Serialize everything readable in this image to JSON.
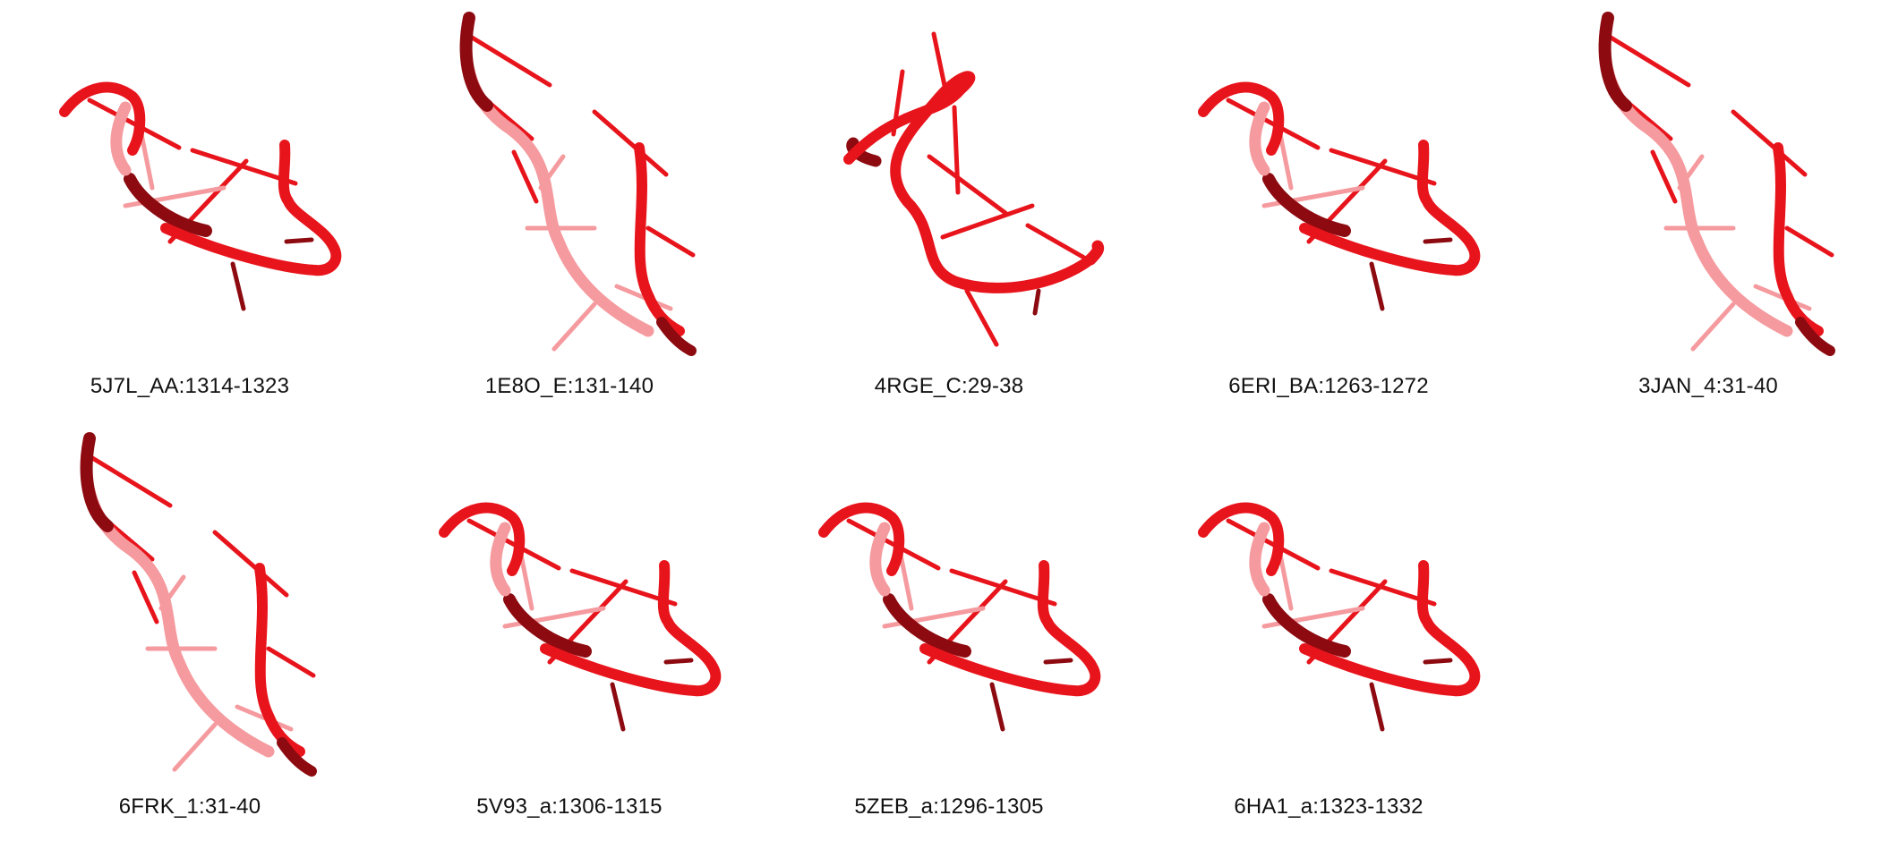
{
  "colors": {
    "main": "#e8141c",
    "dark": "#8c0a10",
    "light": "#f59a9e"
  },
  "structures": [
    {
      "id": "5J7L_AA:1314-1323",
      "shape": "loop"
    },
    {
      "id": "1E8O_E:131-140",
      "shape": "strand"
    },
    {
      "id": "4RGE_C:29-38",
      "shape": "twist"
    },
    {
      "id": "6ERI_BA:1263-1272",
      "shape": "loop"
    },
    {
      "id": "3JAN_4:31-40",
      "shape": "strand"
    },
    {
      "id": "6FRK_1:31-40",
      "shape": "strand"
    },
    {
      "id": "5V93_a:1306-1315",
      "shape": "loop"
    },
    {
      "id": "5ZEB_a:1296-1305",
      "shape": "loop"
    },
    {
      "id": "6HA1_a:1323-1332",
      "shape": "loop"
    }
  ]
}
